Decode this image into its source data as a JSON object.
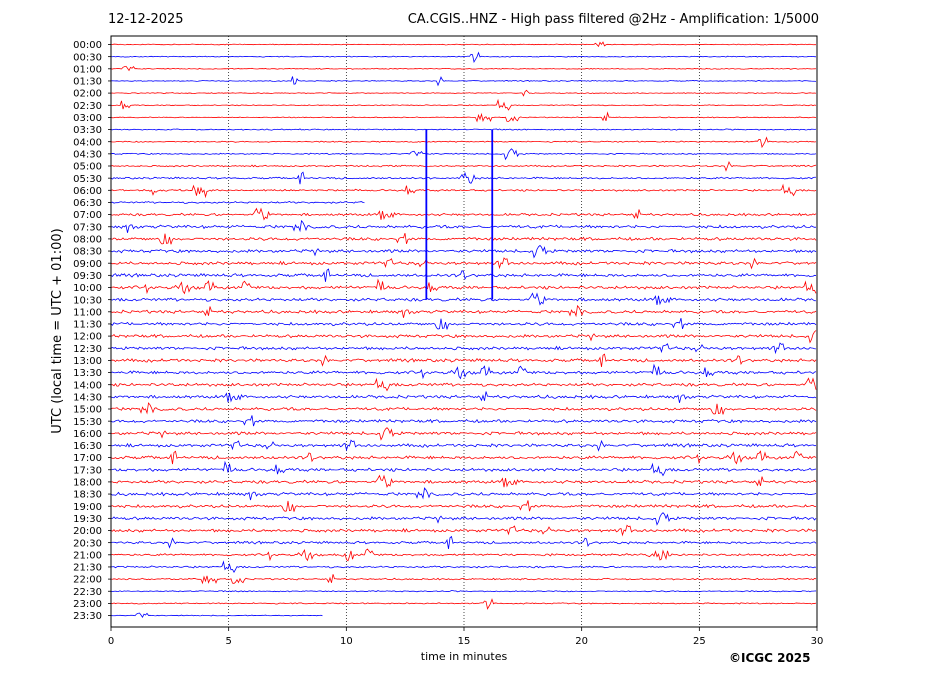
{
  "header": {
    "date": "12-12-2025",
    "title": "CA.CGIS..HNZ - High pass filtered @2Hz - Amplification: 1/5000"
  },
  "footer": {
    "copyright": "©ICGC 2025"
  },
  "colors": {
    "trace_a": "#ff0000",
    "trace_b": "#0000ff",
    "axis": "#000000",
    "gridline": "#000000"
  },
  "chart_data": {
    "type": "line",
    "chart_kind": "helicorder",
    "xlabel": "time in minutes",
    "ylabel": "UTC (local time = UTC + 01:00)",
    "xlim": [
      0,
      30
    ],
    "xticks": [
      0,
      5,
      10,
      15,
      20,
      25,
      30
    ],
    "x_grid": "dotted vertical lines at 5, 10, 15, 20, 25",
    "row_labels": [
      "00:00",
      "00:30",
      "01:00",
      "01:30",
      "02:00",
      "02:30",
      "03:00",
      "03:30",
      "04:00",
      "04:30",
      "05:00",
      "05:30",
      "06:00",
      "06:30",
      "07:00",
      "07:30",
      "08:00",
      "08:30",
      "09:00",
      "09:30",
      "10:00",
      "10:30",
      "11:00",
      "11:30",
      "12:00",
      "12:30",
      "13:00",
      "13:30",
      "14:00",
      "14:30",
      "15:00",
      "15:30",
      "16:00",
      "16:30",
      "17:00",
      "17:30",
      "18:00",
      "18:30",
      "19:00",
      "19:30",
      "20:00",
      "20:30",
      "21:00",
      "21:30",
      "22:00",
      "22:30",
      "23:00",
      "23:30"
    ],
    "row_colors": [
      "red",
      "blue",
      "red",
      "blue",
      "red",
      "red",
      "red",
      "blue",
      "red",
      "blue",
      "red",
      "blue",
      "red",
      "blue",
      "red",
      "blue",
      "red",
      "blue",
      "red",
      "blue",
      "red",
      "blue",
      "red",
      "blue",
      "red",
      "blue",
      "red",
      "blue",
      "red",
      "blue",
      "red",
      "blue",
      "red",
      "blue",
      "red",
      "blue",
      "red",
      "blue",
      "red",
      "blue",
      "red",
      "blue",
      "red",
      "blue",
      "red",
      "blue",
      "red",
      "blue"
    ],
    "row_noise": [
      0.3,
      0.3,
      0.3,
      0.3,
      0.3,
      0.3,
      0.3,
      0.4,
      0.4,
      0.4,
      0.5,
      0.6,
      0.6,
      0.6,
      0.8,
      1.0,
      1.0,
      1.0,
      1.0,
      1.0,
      1.0,
      1.0,
      1.0,
      1.0,
      1.0,
      1.0,
      1.0,
      1.0,
      1.0,
      1.0,
      1.0,
      1.0,
      1.0,
      1.0,
      1.0,
      1.0,
      1.0,
      1.0,
      1.0,
      1.0,
      1.0,
      0.8,
      0.7,
      0.6,
      0.5,
      0.4,
      0.4,
      0.3
    ],
    "row_end_minute": [
      30,
      30,
      30,
      30,
      30,
      30,
      30,
      30,
      30,
      30,
      30,
      30,
      30,
      10.8,
      30,
      30,
      30,
      30,
      30,
      30,
      30,
      30,
      30,
      30,
      30,
      30,
      30,
      30,
      30,
      30,
      30,
      30,
      30,
      30,
      30,
      30,
      30,
      30,
      30,
      30,
      30,
      30,
      30,
      30,
      30,
      30,
      30,
      9.0
    ],
    "spikes": [
      {
        "start_row": "03:30",
        "end_row": "10:30",
        "minute": 13.4
      },
      {
        "start_row": "03:30",
        "end_row": "10:30",
        "minute": 16.2
      }
    ]
  }
}
